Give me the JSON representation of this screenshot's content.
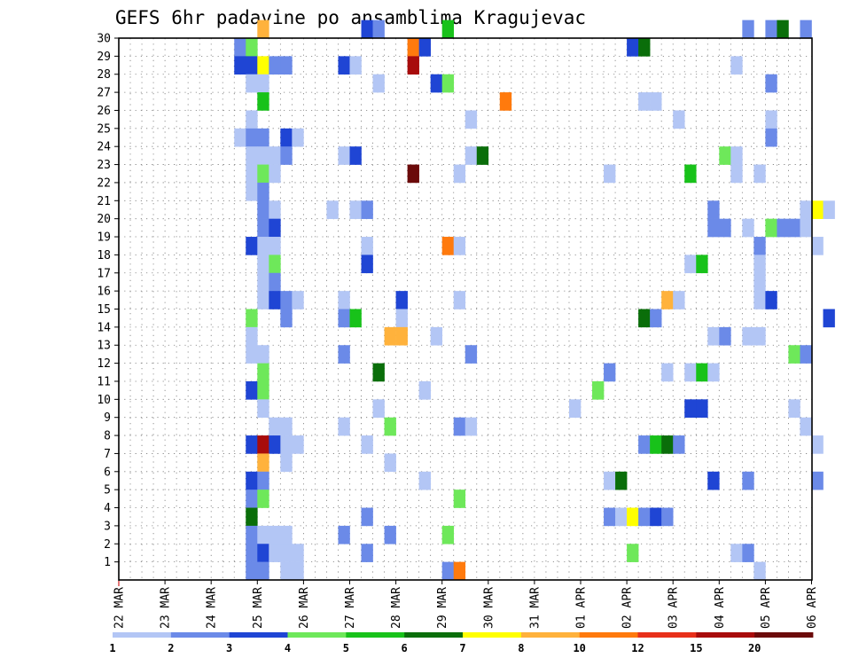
{
  "chart_data": {
    "type": "heatmap",
    "title": "GEFS 6hr padavine po ansamblima Kragujevac",
    "xlabel": "",
    "ylabel": "",
    "x_tick_labels": [
      "22 MAR",
      "23 MAR",
      "24 MAR",
      "25 MAR",
      "26 MAR",
      "27 MAR",
      "28 MAR",
      "29 MAR",
      "30 MAR",
      "31 MAR",
      "01 APR",
      "02 APR",
      "03 APR",
      "04 APR",
      "05 APR",
      "06 APR"
    ],
    "y_tick_labels": [
      "1",
      "2",
      "3",
      "4",
      "5",
      "6",
      "7",
      "8",
      "9",
      "10",
      "11",
      "12",
      "13",
      "14",
      "15",
      "16",
      "17",
      "18",
      "19",
      "20",
      "21",
      "22",
      "23",
      "24",
      "25",
      "26",
      "27",
      "28",
      "29",
      "30"
    ],
    "x_unit": "6-hour step index from 22 MAR 00 UTC (4 steps per day)",
    "grid": true,
    "colorbar": {
      "position": "bottom",
      "levels": [
        "1",
        "2",
        "3",
        "4",
        "5",
        "6",
        "7",
        "8",
        "10",
        "12",
        "15",
        "20"
      ],
      "colors": [
        "#b3c6f5",
        "#6b8ae8",
        "#1f45d4",
        "#6ee85a",
        "#18c21a",
        "#0a6e0a",
        "#ffff00",
        "#ffb23c",
        "#ff7a0d",
        "#e8301a",
        "#a80c0c",
        "#6b0a0a"
      ]
    },
    "cells": [
      {
        "m": 30,
        "t": 12,
        "v": 7
      },
      {
        "m": 30,
        "t": 21,
        "v": 2
      },
      {
        "m": 30,
        "t": 22,
        "v": 1
      },
      {
        "m": 30,
        "t": 28,
        "v": 4
      },
      {
        "m": 30,
        "t": 54,
        "v": 1
      },
      {
        "m": 30,
        "t": 56,
        "v": 1
      },
      {
        "m": 30,
        "t": 57,
        "v": 5
      },
      {
        "m": 30,
        "t": 59,
        "v": 1
      },
      {
        "m": 29,
        "t": 10,
        "v": 1
      },
      {
        "m": 29,
        "t": 11,
        "v": 3
      },
      {
        "m": 29,
        "t": 25,
        "v": 8
      },
      {
        "m": 29,
        "t": 26,
        "v": 2
      },
      {
        "m": 29,
        "t": 44,
        "v": 2
      },
      {
        "m": 29,
        "t": 45,
        "v": 5
      },
      {
        "m": 28,
        "t": 10,
        "v": 2
      },
      {
        "m": 28,
        "t": 11,
        "v": 2
      },
      {
        "m": 28,
        "t": 12,
        "v": 6
      },
      {
        "m": 28,
        "t": 13,
        "v": 1
      },
      {
        "m": 28,
        "t": 14,
        "v": 1
      },
      {
        "m": 28,
        "t": 19,
        "v": 2
      },
      {
        "m": 28,
        "t": 20,
        "v": 0
      },
      {
        "m": 28,
        "t": 25,
        "v": 10
      },
      {
        "m": 28,
        "t": 53,
        "v": 0
      },
      {
        "m": 27,
        "t": 11,
        "v": 0
      },
      {
        "m": 27,
        "t": 12,
        "v": 0
      },
      {
        "m": 27,
        "t": 22,
        "v": 0
      },
      {
        "m": 27,
        "t": 27,
        "v": 2
      },
      {
        "m": 27,
        "t": 28,
        "v": 3
      },
      {
        "m": 27,
        "t": 56,
        "v": 1
      },
      {
        "m": 26,
        "t": 12,
        "v": 4
      },
      {
        "m": 26,
        "t": 33,
        "v": 8
      },
      {
        "m": 26,
        "t": 45,
        "v": 0
      },
      {
        "m": 26,
        "t": 46,
        "v": 0
      },
      {
        "m": 25,
        "t": 11,
        "v": 0
      },
      {
        "m": 25,
        "t": 30,
        "v": 0
      },
      {
        "m": 25,
        "t": 48,
        "v": 0
      },
      {
        "m": 25,
        "t": 56,
        "v": 0
      },
      {
        "m": 24,
        "t": 10,
        "v": 0
      },
      {
        "m": 24,
        "t": 11,
        "v": 1
      },
      {
        "m": 24,
        "t": 12,
        "v": 1
      },
      {
        "m": 24,
        "t": 14,
        "v": 2
      },
      {
        "m": 24,
        "t": 15,
        "v": 0
      },
      {
        "m": 24,
        "t": 56,
        "v": 1
      },
      {
        "m": 23,
        "t": 11,
        "v": 0
      },
      {
        "m": 23,
        "t": 12,
        "v": 0
      },
      {
        "m": 23,
        "t": 13,
        "v": 0
      },
      {
        "m": 23,
        "t": 14,
        "v": 1
      },
      {
        "m": 23,
        "t": 19,
        "v": 0
      },
      {
        "m": 23,
        "t": 20,
        "v": 2
      },
      {
        "m": 23,
        "t": 30,
        "v": 0
      },
      {
        "m": 23,
        "t": 31,
        "v": 5
      },
      {
        "m": 23,
        "t": 52,
        "v": 3
      },
      {
        "m": 23,
        "t": 53,
        "v": 0
      },
      {
        "m": 22,
        "t": 11,
        "v": 0
      },
      {
        "m": 22,
        "t": 12,
        "v": 3
      },
      {
        "m": 22,
        "t": 13,
        "v": 0
      },
      {
        "m": 22,
        "t": 25,
        "v": 11
      },
      {
        "m": 22,
        "t": 29,
        "v": 0
      },
      {
        "m": 22,
        "t": 42,
        "v": 0
      },
      {
        "m": 22,
        "t": 49,
        "v": 4
      },
      {
        "m": 22,
        "t": 53,
        "v": 0
      },
      {
        "m": 22,
        "t": 55,
        "v": 0
      },
      {
        "m": 21,
        "t": 11,
        "v": 0
      },
      {
        "m": 21,
        "t": 12,
        "v": 1
      },
      {
        "m": 20,
        "t": 12,
        "v": 1
      },
      {
        "m": 20,
        "t": 13,
        "v": 0
      },
      {
        "m": 20,
        "t": 18,
        "v": 0
      },
      {
        "m": 20,
        "t": 20,
        "v": 0
      },
      {
        "m": 20,
        "t": 21,
        "v": 1
      },
      {
        "m": 20,
        "t": 51,
        "v": 1
      },
      {
        "m": 20,
        "t": 59,
        "v": 0
      },
      {
        "m": 20,
        "t": 60,
        "v": 6
      },
      {
        "m": 20,
        "t": 61,
        "v": 0
      },
      {
        "m": 19,
        "t": 12,
        "v": 1
      },
      {
        "m": 19,
        "t": 13,
        "v": 2
      },
      {
        "m": 19,
        "t": 51,
        "v": 1
      },
      {
        "m": 19,
        "t": 52,
        "v": 1
      },
      {
        "m": 19,
        "t": 54,
        "v": 0
      },
      {
        "m": 19,
        "t": 56,
        "v": 3
      },
      {
        "m": 19,
        "t": 57,
        "v": 1
      },
      {
        "m": 19,
        "t": 58,
        "v": 1
      },
      {
        "m": 19,
        "t": 59,
        "v": 0
      },
      {
        "m": 18,
        "t": 11,
        "v": 2
      },
      {
        "m": 18,
        "t": 12,
        "v": 0
      },
      {
        "m": 18,
        "t": 13,
        "v": 0
      },
      {
        "m": 18,
        "t": 21,
        "v": 0
      },
      {
        "m": 18,
        "t": 28,
        "v": 8
      },
      {
        "m": 18,
        "t": 29,
        "v": 0
      },
      {
        "m": 18,
        "t": 55,
        "v": 1
      },
      {
        "m": 18,
        "t": 60,
        "v": 0
      },
      {
        "m": 17,
        "t": 12,
        "v": 0
      },
      {
        "m": 17,
        "t": 13,
        "v": 3
      },
      {
        "m": 17,
        "t": 21,
        "v": 2
      },
      {
        "m": 17,
        "t": 49,
        "v": 0
      },
      {
        "m": 17,
        "t": 50,
        "v": 4
      },
      {
        "m": 17,
        "t": 55,
        "v": 0
      },
      {
        "m": 16,
        "t": 12,
        "v": 0
      },
      {
        "m": 16,
        "t": 13,
        "v": 1
      },
      {
        "m": 16,
        "t": 55,
        "v": 0
      },
      {
        "m": 15,
        "t": 12,
        "v": 0
      },
      {
        "m": 15,
        "t": 13,
        "v": 2
      },
      {
        "m": 15,
        "t": 14,
        "v": 1
      },
      {
        "m": 15,
        "t": 15,
        "v": 0
      },
      {
        "m": 15,
        "t": 19,
        "v": 0
      },
      {
        "m": 15,
        "t": 24,
        "v": 2
      },
      {
        "m": 15,
        "t": 29,
        "v": 0
      },
      {
        "m": 15,
        "t": 47,
        "v": 7
      },
      {
        "m": 15,
        "t": 48,
        "v": 0
      },
      {
        "m": 15,
        "t": 55,
        "v": 0
      },
      {
        "m": 15,
        "t": 56,
        "v": 2
      },
      {
        "m": 14,
        "t": 11,
        "v": 3
      },
      {
        "m": 14,
        "t": 14,
        "v": 1
      },
      {
        "m": 14,
        "t": 19,
        "v": 1
      },
      {
        "m": 14,
        "t": 20,
        "v": 4
      },
      {
        "m": 14,
        "t": 24,
        "v": 0
      },
      {
        "m": 14,
        "t": 45,
        "v": 5
      },
      {
        "m": 14,
        "t": 46,
        "v": 1
      },
      {
        "m": 14,
        "t": 61,
        "v": 2
      },
      {
        "m": 13,
        "t": 11,
        "v": 0
      },
      {
        "m": 13,
        "t": 23,
        "v": 7
      },
      {
        "m": 13,
        "t": 24,
        "v": 7
      },
      {
        "m": 13,
        "t": 27,
        "v": 0
      },
      {
        "m": 13,
        "t": 51,
        "v": 0
      },
      {
        "m": 13,
        "t": 52,
        "v": 1
      },
      {
        "m": 13,
        "t": 54,
        "v": 0
      },
      {
        "m": 13,
        "t": 55,
        "v": 0
      },
      {
        "m": 12,
        "t": 11,
        "v": 0
      },
      {
        "m": 12,
        "t": 12,
        "v": 0
      },
      {
        "m": 12,
        "t": 19,
        "v": 1
      },
      {
        "m": 12,
        "t": 30,
        "v": 1
      },
      {
        "m": 12,
        "t": 58,
        "v": 3
      },
      {
        "m": 12,
        "t": 59,
        "v": 1
      },
      {
        "m": 11,
        "t": 12,
        "v": 3
      },
      {
        "m": 11,
        "t": 22,
        "v": 5
      },
      {
        "m": 11,
        "t": 42,
        "v": 1
      },
      {
        "m": 11,
        "t": 47,
        "v": 0
      },
      {
        "m": 11,
        "t": 49,
        "v": 0
      },
      {
        "m": 11,
        "t": 50,
        "v": 4
      },
      {
        "m": 11,
        "t": 51,
        "v": 0
      },
      {
        "m": 10,
        "t": 11,
        "v": 2
      },
      {
        "m": 10,
        "t": 12,
        "v": 3
      },
      {
        "m": 10,
        "t": 26,
        "v": 0
      },
      {
        "m": 10,
        "t": 41,
        "v": 3
      },
      {
        "m": 9,
        "t": 12,
        "v": 0
      },
      {
        "m": 9,
        "t": 22,
        "v": 0
      },
      {
        "m": 9,
        "t": 39,
        "v": 0
      },
      {
        "m": 9,
        "t": 49,
        "v": 2
      },
      {
        "m": 9,
        "t": 50,
        "v": 2
      },
      {
        "m": 9,
        "t": 58,
        "v": 0
      },
      {
        "m": 8,
        "t": 13,
        "v": 0
      },
      {
        "m": 8,
        "t": 14,
        "v": 0
      },
      {
        "m": 8,
        "t": 19,
        "v": 0
      },
      {
        "m": 8,
        "t": 23,
        "v": 3
      },
      {
        "m": 8,
        "t": 29,
        "v": 1
      },
      {
        "m": 8,
        "t": 30,
        "v": 0
      },
      {
        "m": 8,
        "t": 59,
        "v": 0
      },
      {
        "m": 7,
        "t": 11,
        "v": 2
      },
      {
        "m": 7,
        "t": 12,
        "v": 10
      },
      {
        "m": 7,
        "t": 13,
        "v": 2
      },
      {
        "m": 7,
        "t": 14,
        "v": 0
      },
      {
        "m": 7,
        "t": 15,
        "v": 0
      },
      {
        "m": 7,
        "t": 21,
        "v": 0
      },
      {
        "m": 7,
        "t": 45,
        "v": 1
      },
      {
        "m": 7,
        "t": 46,
        "v": 4
      },
      {
        "m": 7,
        "t": 47,
        "v": 5
      },
      {
        "m": 7,
        "t": 48,
        "v": 1
      },
      {
        "m": 7,
        "t": 60,
        "v": 0
      },
      {
        "m": 6,
        "t": 12,
        "v": 7
      },
      {
        "m": 6,
        "t": 14,
        "v": 0
      },
      {
        "m": 6,
        "t": 23,
        "v": 0
      },
      {
        "m": 5,
        "t": 11,
        "v": 2
      },
      {
        "m": 5,
        "t": 12,
        "v": 1
      },
      {
        "m": 5,
        "t": 26,
        "v": 0
      },
      {
        "m": 5,
        "t": 42,
        "v": 0
      },
      {
        "m": 5,
        "t": 43,
        "v": 5
      },
      {
        "m": 5,
        "t": 51,
        "v": 2
      },
      {
        "m": 5,
        "t": 54,
        "v": 1
      },
      {
        "m": 5,
        "t": 60,
        "v": 1
      },
      {
        "m": 4,
        "t": 11,
        "v": 1
      },
      {
        "m": 4,
        "t": 12,
        "v": 3
      },
      {
        "m": 4,
        "t": 29,
        "v": 3
      },
      {
        "m": 3,
        "t": 11,
        "v": 5
      },
      {
        "m": 3,
        "t": 21,
        "v": 1
      },
      {
        "m": 3,
        "t": 42,
        "v": 1
      },
      {
        "m": 3,
        "t": 43,
        "v": 0
      },
      {
        "m": 3,
        "t": 44,
        "v": 6
      },
      {
        "m": 3,
        "t": 45,
        "v": 1
      },
      {
        "m": 3,
        "t": 46,
        "v": 2
      },
      {
        "m": 3,
        "t": 47,
        "v": 1
      },
      {
        "m": 2,
        "t": 11,
        "v": 1
      },
      {
        "m": 2,
        "t": 12,
        "v": 0
      },
      {
        "m": 2,
        "t": 13,
        "v": 0
      },
      {
        "m": 2,
        "t": 14,
        "v": 0
      },
      {
        "m": 2,
        "t": 19,
        "v": 1
      },
      {
        "m": 2,
        "t": 23,
        "v": 1
      },
      {
        "m": 2,
        "t": 28,
        "v": 3
      },
      {
        "m": 1,
        "t": 11,
        "v": 1
      },
      {
        "m": 1,
        "t": 12,
        "v": 2
      },
      {
        "m": 1,
        "t": 13,
        "v": 0
      },
      {
        "m": 1,
        "t": 14,
        "v": 0
      },
      {
        "m": 1,
        "t": 15,
        "v": 0
      },
      {
        "m": 1,
        "t": 21,
        "v": 1
      },
      {
        "m": 1,
        "t": 44,
        "v": 3
      },
      {
        "m": 1,
        "t": 53,
        "v": 0
      },
      {
        "m": 1,
        "t": 54,
        "v": 1
      },
      {
        "m": 0,
        "t": 11,
        "v": 1
      },
      {
        "m": 0,
        "t": 12,
        "v": 1
      },
      {
        "m": 0,
        "t": 14,
        "v": 0
      },
      {
        "m": 0,
        "t": 15,
        "v": 0
      },
      {
        "m": 0,
        "t": 28,
        "v": 1
      },
      {
        "m": 0,
        "t": 29,
        "v": 8
      },
      {
        "m": 0,
        "t": 55,
        "v": 0
      }
    ]
  }
}
